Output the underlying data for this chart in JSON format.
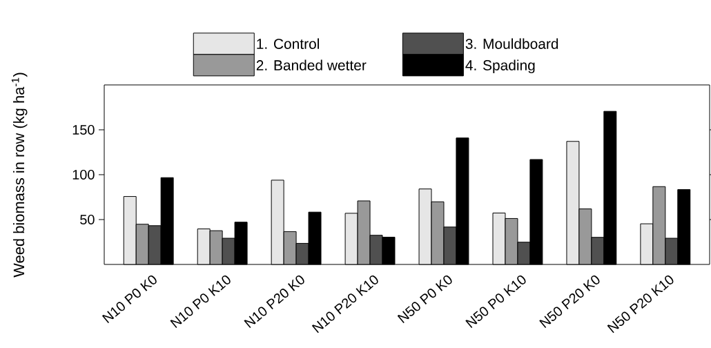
{
  "chart_data": {
    "type": "bar",
    "ylabel": "Weed biomass in row (kg ha$^{-1}$)",
    "categories": [
      "N10 P0 K0",
      "N10 P0 K10",
      "N10 P20 K0",
      "N10 P20 K10",
      "N50 P0 K0",
      "N50 P0 K10",
      "N50 P20 K0",
      "N50 P20 K10"
    ],
    "series": [
      {
        "name": "1. Control",
        "color": "#e6e6e6",
        "values": [
          75.7,
          39.6,
          93.9,
          57.0,
          84.1,
          57.3,
          137.1,
          45.3
        ]
      },
      {
        "name": "2. Banded wetter",
        "color": "#999999",
        "values": [
          44.8,
          37.6,
          36.6,
          70.8,
          69.8,
          51.2,
          61.9,
          86.7
        ]
      },
      {
        "name": "3. Mouldboard",
        "color": "#505050",
        "values": [
          43.2,
          29.2,
          23.5,
          32.5,
          41.7,
          24.8,
          30.2,
          29.2
        ]
      },
      {
        "name": "4. Spading",
        "color": "#000000",
        "values": [
          96.7,
          47.1,
          58.3,
          30.4,
          140.9,
          116.9,
          170.6,
          83.4
        ]
      }
    ],
    "ylim": [
      0,
      200
    ],
    "yticks": [
      50,
      100,
      150
    ],
    "legend": "top"
  }
}
